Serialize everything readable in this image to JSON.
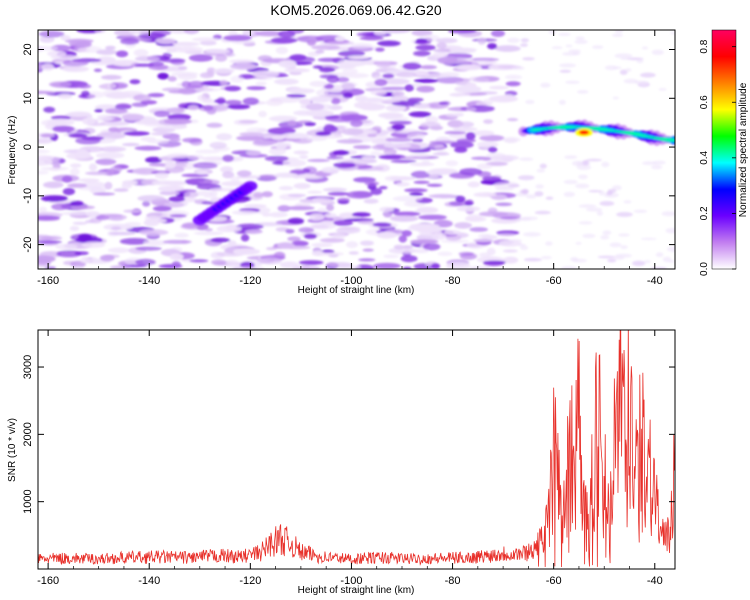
{
  "title": "KOM5.2026.069.06.42.G20",
  "chart_data": [
    {
      "type": "heatmap",
      "title": "KOM5.2026.069.06.42.G20",
      "xlabel": "Height of straight line (km)",
      "ylabel": "Frequency (Hz)",
      "xlim": [
        -162,
        -36
      ],
      "ylim": [
        -25,
        24
      ],
      "xticks": [
        -160,
        -140,
        -120,
        -100,
        -80,
        -60,
        -40
      ],
      "xtick_labels": [
        "-160",
        "-140",
        "-120",
        "-100",
        "-80",
        "-60",
        "-40"
      ],
      "yticks": [
        20,
        10,
        0,
        -10,
        -20
      ],
      "ytick_labels": [
        "20",
        "10",
        "0",
        "-10",
        "-20"
      ],
      "colorbar": {
        "label": "Normalized spectral amplitude",
        "range": [
          0,
          0.86
        ],
        "ticks": [
          0.0,
          0.2,
          0.4,
          0.6,
          0.8
        ],
        "tick_labels": [
          "0.0",
          "0.2",
          "0.4",
          "0.6",
          "0.8"
        ],
        "colors": [
          "#ffffff",
          "#c27ef0",
          "#6b00ff",
          "#0000ff",
          "#00ffff",
          "#00ff00",
          "#ffff00",
          "#ff8000",
          "#ff0000",
          "#ff0060"
        ]
      },
      "features": [
        {
          "name": "diffuse background noise",
          "x_range": [
            -162,
            -66
          ],
          "freq_range": [
            -25,
            24
          ],
          "amplitude": 0.12
        },
        {
          "name": "streak near -125 km",
          "x_range": [
            -130,
            -120
          ],
          "freq_range": [
            -15,
            -8
          ],
          "amplitude": 0.3
        },
        {
          "name": "signal band",
          "x_range": [
            -66,
            -36
          ],
          "freq_range": [
            1,
            6
          ],
          "amplitude": 0.8,
          "peak_at": [
            -54,
            3
          ]
        }
      ]
    },
    {
      "type": "line",
      "xlabel": "Height of straight line (km)",
      "ylabel": "SNR (10 * v/v)",
      "xlim": [
        -162,
        -36
      ],
      "ylim": [
        0,
        3550
      ],
      "xticks": [
        -160,
        -140,
        -120,
        -100,
        -80,
        -60,
        -40
      ],
      "xtick_labels": [
        "-160",
        "-140",
        "-120",
        "-100",
        "-80",
        "-60",
        "-40"
      ],
      "yticks": [
        1000,
        2000,
        3000
      ],
      "ytick_labels": [
        "1000",
        "2000",
        "3000"
      ],
      "series": [
        {
          "name": "SNR",
          "color": "#e8302a",
          "x": [
            -162,
            -156,
            -150,
            -144,
            -138,
            -132,
            -126,
            -122,
            -118,
            -116,
            -114,
            -112,
            -110,
            -106,
            -100,
            -94,
            -88,
            -82,
            -76,
            -70,
            -66,
            -64,
            -62,
            -61,
            -60,
            -59,
            -58,
            -57,
            -56,
            -55,
            -54,
            -53,
            -52,
            -51,
            -50,
            -49,
            -48,
            -47,
            -46,
            -45,
            -44,
            -43,
            -42,
            -41,
            -40,
            -39,
            -38,
            -37,
            -36
          ],
          "values": [
            150,
            160,
            150,
            170,
            180,
            170,
            200,
            180,
            240,
            380,
            450,
            380,
            250,
            180,
            150,
            170,
            150,
            160,
            170,
            230,
            230,
            300,
            420,
            900,
            1600,
            1450,
            900,
            1500,
            2000,
            2450,
            1200,
            400,
            1800,
            2200,
            1700,
            600,
            2300,
            2900,
            3200,
            2600,
            1200,
            1700,
            1900,
            1500,
            1200,
            600,
            400,
            500,
            1700
          ]
        }
      ]
    }
  ]
}
